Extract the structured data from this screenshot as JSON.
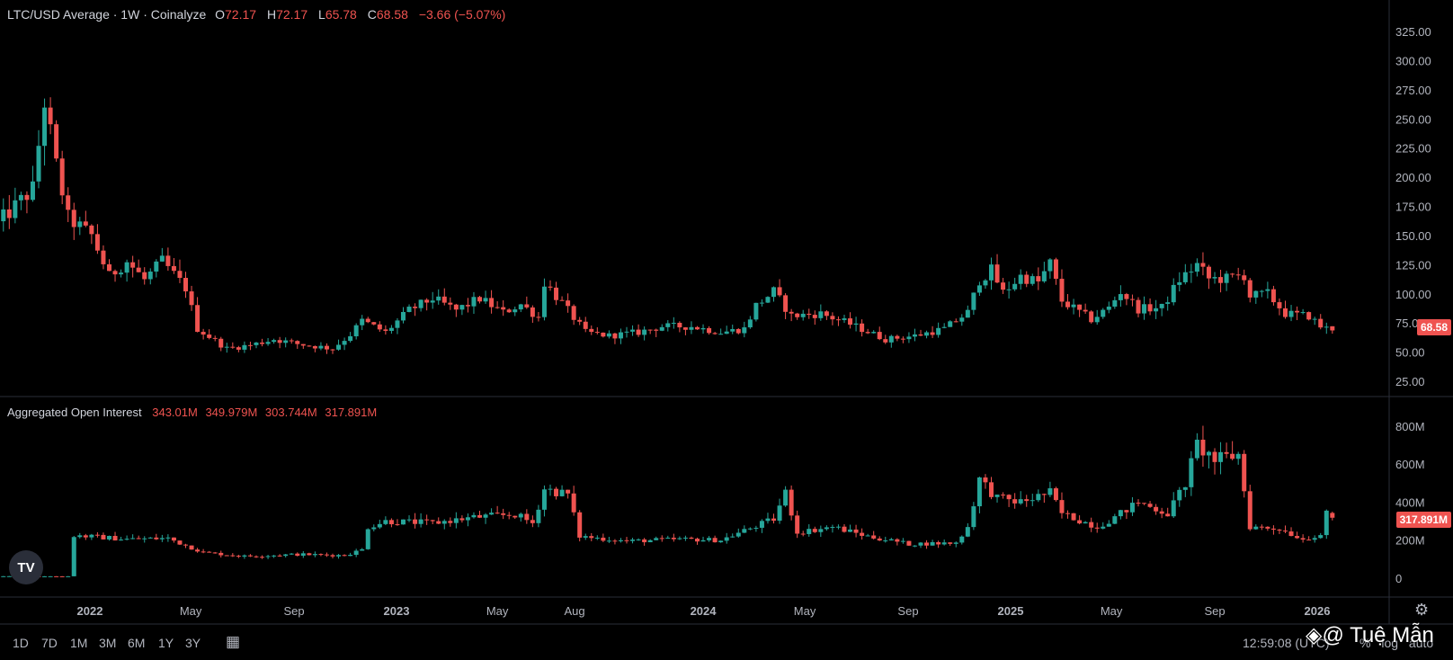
{
  "header": {
    "title": "LTC/USD Average · 1W · Coinalyze",
    "o_label": "O",
    "o": "72.17",
    "h_label": "H",
    "h": "72.17",
    "l_label": "L",
    "l": "65.78",
    "c_label": "C",
    "c": "68.58",
    "change": "−3.66 (−5.07%)"
  },
  "oi_header": {
    "title": "Aggregated Open Interest",
    "o": "343.01M",
    "h": "349.979M",
    "l": "303.744M",
    "c": "317.891M"
  },
  "price_tag": "68.58",
  "oi_tag": "317.891M",
  "range_buttons": [
    "1D",
    "7D",
    "1M",
    "3M",
    "6M",
    "1Y",
    "3Y"
  ],
  "clock": "12:59:08 (UTC)",
  "scale_options": [
    "%",
    "log",
    "auto"
  ],
  "watermark": "@ Tuệ Mẫn",
  "icons": {
    "logo": "tradingview-logo-icon",
    "settings": "gear-icon",
    "calendar": "calendar-goto-icon",
    "watermark": "binance-logo-icon"
  },
  "colors": {
    "up": "#26a69a",
    "down": "#ef5350",
    "bg": "#000000",
    "grid": "#2a2e39",
    "text": "#b2b5be"
  },
  "chart_data": [
    {
      "type": "candlestick",
      "title": "LTC/USD Average · 1W · Coinalyze",
      "interval": "1W",
      "ylim": [
        15,
        325
      ],
      "y_ticks": [
        325,
        300,
        275,
        250,
        225,
        200,
        175,
        150,
        125,
        100,
        75,
        50,
        25
      ],
      "x_ticks": [
        "2022",
        "May",
        "Sep",
        "2023",
        "May",
        "Aug",
        "2024",
        "May",
        "Sep",
        "2025",
        "May",
        "Sep",
        "2026"
      ],
      "x_tick_dates": [
        "2022-01-01",
        "2022-05-01",
        "2022-09-01",
        "2023-01-01",
        "2023-05-01",
        "2023-08-01",
        "2024-01-01",
        "2024-05-01",
        "2024-09-01",
        "2025-01-01",
        "2025-05-01",
        "2025-09-01",
        "2026-01-01"
      ],
      "last_value": 68.58,
      "price_anchors": [
        [
          "2021-09-13",
          160
        ],
        [
          "2021-10-25",
          190
        ],
        [
          "2021-11-08",
          265
        ],
        [
          "2021-11-22",
          210
        ],
        [
          "2021-12-06",
          165
        ],
        [
          "2022-01-03",
          150
        ],
        [
          "2022-01-24",
          115
        ],
        [
          "2022-02-14",
          128
        ],
        [
          "2022-03-07",
          112
        ],
        [
          "2022-03-28",
          128
        ],
        [
          "2022-04-25",
          105
        ],
        [
          "2022-05-09",
          70
        ],
        [
          "2022-06-13",
          53
        ],
        [
          "2022-07-11",
          56
        ],
        [
          "2022-08-08",
          61
        ],
        [
          "2022-09-05",
          57
        ],
        [
          "2022-10-17",
          53
        ],
        [
          "2022-11-07",
          65
        ],
        [
          "2022-11-21",
          77
        ],
        [
          "2022-12-19",
          67
        ],
        [
          "2023-01-16",
          86
        ],
        [
          "2023-02-13",
          96
        ],
        [
          "2023-03-13",
          86
        ],
        [
          "2023-04-10",
          96
        ],
        [
          "2023-05-08",
          84
        ],
        [
          "2023-05-29",
          91
        ],
        [
          "2023-06-19",
          80
        ],
        [
          "2023-06-26",
          110
        ],
        [
          "2023-07-17",
          92
        ],
        [
          "2023-08-14",
          67
        ],
        [
          "2023-09-11",
          64
        ],
        [
          "2023-10-16",
          67
        ],
        [
          "2023-11-13",
          72
        ],
        [
          "2023-12-18",
          72
        ],
        [
          "2024-01-22",
          67
        ],
        [
          "2024-02-19",
          70
        ],
        [
          "2024-03-04",
          90
        ],
        [
          "2024-03-25",
          102
        ],
        [
          "2024-04-15",
          81
        ],
        [
          "2024-05-20",
          83
        ],
        [
          "2024-06-24",
          74
        ],
        [
          "2024-08-05",
          61
        ],
        [
          "2024-09-09",
          64
        ],
        [
          "2024-10-14",
          70
        ],
        [
          "2024-11-11",
          84
        ],
        [
          "2024-11-25",
          112
        ],
        [
          "2024-12-09",
          120
        ],
        [
          "2024-12-23",
          101
        ],
        [
          "2025-01-13",
          115
        ],
        [
          "2025-02-03",
          110
        ],
        [
          "2025-02-17",
          126
        ],
        [
          "2025-03-03",
          94
        ],
        [
          "2025-04-07",
          78
        ],
        [
          "2025-04-28",
          88
        ],
        [
          "2025-05-12",
          102
        ],
        [
          "2025-06-02",
          87
        ],
        [
          "2025-06-30",
          88
        ],
        [
          "2025-07-21",
          112
        ],
        [
          "2025-08-11",
          125
        ],
        [
          "2025-08-25",
          113
        ],
        [
          "2025-09-15",
          113
        ],
        [
          "2025-10-06",
          116
        ],
        [
          "2025-10-13",
          98
        ],
        [
          "2025-11-03",
          100
        ],
        [
          "2025-11-24",
          83
        ],
        [
          "2025-12-22",
          81
        ],
        [
          "2026-01-05",
          72
        ],
        [
          "2026-01-19",
          68.58
        ]
      ],
      "series_name": "LTC/USD Average"
    },
    {
      "type": "candlestick",
      "title": "Aggregated Open Interest",
      "ylim": [
        -80000000,
        900000000
      ],
      "y_ticks": [
        "800M",
        "600M",
        "400M",
        "200M",
        "0"
      ],
      "y_tick_values": [
        800000000,
        600000000,
        400000000,
        200000000,
        0
      ],
      "last_value": 317891000,
      "oi_anchors": [
        [
          "2021-09-13",
          10
        ],
        [
          "2021-12-06",
          10
        ],
        [
          "2021-12-13",
          225
        ],
        [
          "2022-02-14",
          205
        ],
        [
          "2022-04-04",
          210
        ],
        [
          "2022-05-16",
          135
        ],
        [
          "2022-07-04",
          115
        ],
        [
          "2022-09-05",
          125
        ],
        [
          "2022-10-31",
          120
        ],
        [
          "2022-11-21",
          150
        ],
        [
          "2022-11-28",
          270
        ],
        [
          "2022-12-19",
          300
        ],
        [
          "2023-02-13",
          290
        ],
        [
          "2023-04-03",
          320
        ],
        [
          "2023-05-22",
          335
        ],
        [
          "2023-06-12",
          290
        ],
        [
          "2023-06-26",
          470
        ],
        [
          "2023-07-24",
          440
        ],
        [
          "2023-08-07",
          220
        ],
        [
          "2023-10-02",
          195
        ],
        [
          "2023-12-04",
          205
        ],
        [
          "2024-01-22",
          200
        ],
        [
          "2024-02-19",
          250
        ],
        [
          "2024-03-25",
          310
        ],
        [
          "2024-04-08",
          450
        ],
        [
          "2024-04-22",
          240
        ],
        [
          "2024-06-03",
          270
        ],
        [
          "2024-07-15",
          220
        ],
        [
          "2024-09-02",
          180
        ],
        [
          "2024-10-28",
          185
        ],
        [
          "2024-11-11",
          270
        ],
        [
          "2024-11-25",
          520
        ],
        [
          "2024-12-16",
          420
        ],
        [
          "2025-01-13",
          400
        ],
        [
          "2025-02-17",
          450
        ],
        [
          "2025-03-03",
          340
        ],
        [
          "2025-04-14",
          270
        ],
        [
          "2025-05-05",
          320
        ],
        [
          "2025-06-02",
          400
        ],
        [
          "2025-07-07",
          340
        ],
        [
          "2025-07-28",
          500
        ],
        [
          "2025-08-11",
          700
        ],
        [
          "2025-09-01",
          620
        ],
        [
          "2025-09-29",
          650
        ],
        [
          "2025-10-13",
          270
        ],
        [
          "2025-11-17",
          260
        ],
        [
          "2025-12-15",
          205
        ],
        [
          "2026-01-05",
          230
        ],
        [
          "2026-01-12",
          335
        ],
        [
          "2026-01-19",
          318
        ]
      ],
      "series_name": "Aggregated Open Interest"
    }
  ]
}
